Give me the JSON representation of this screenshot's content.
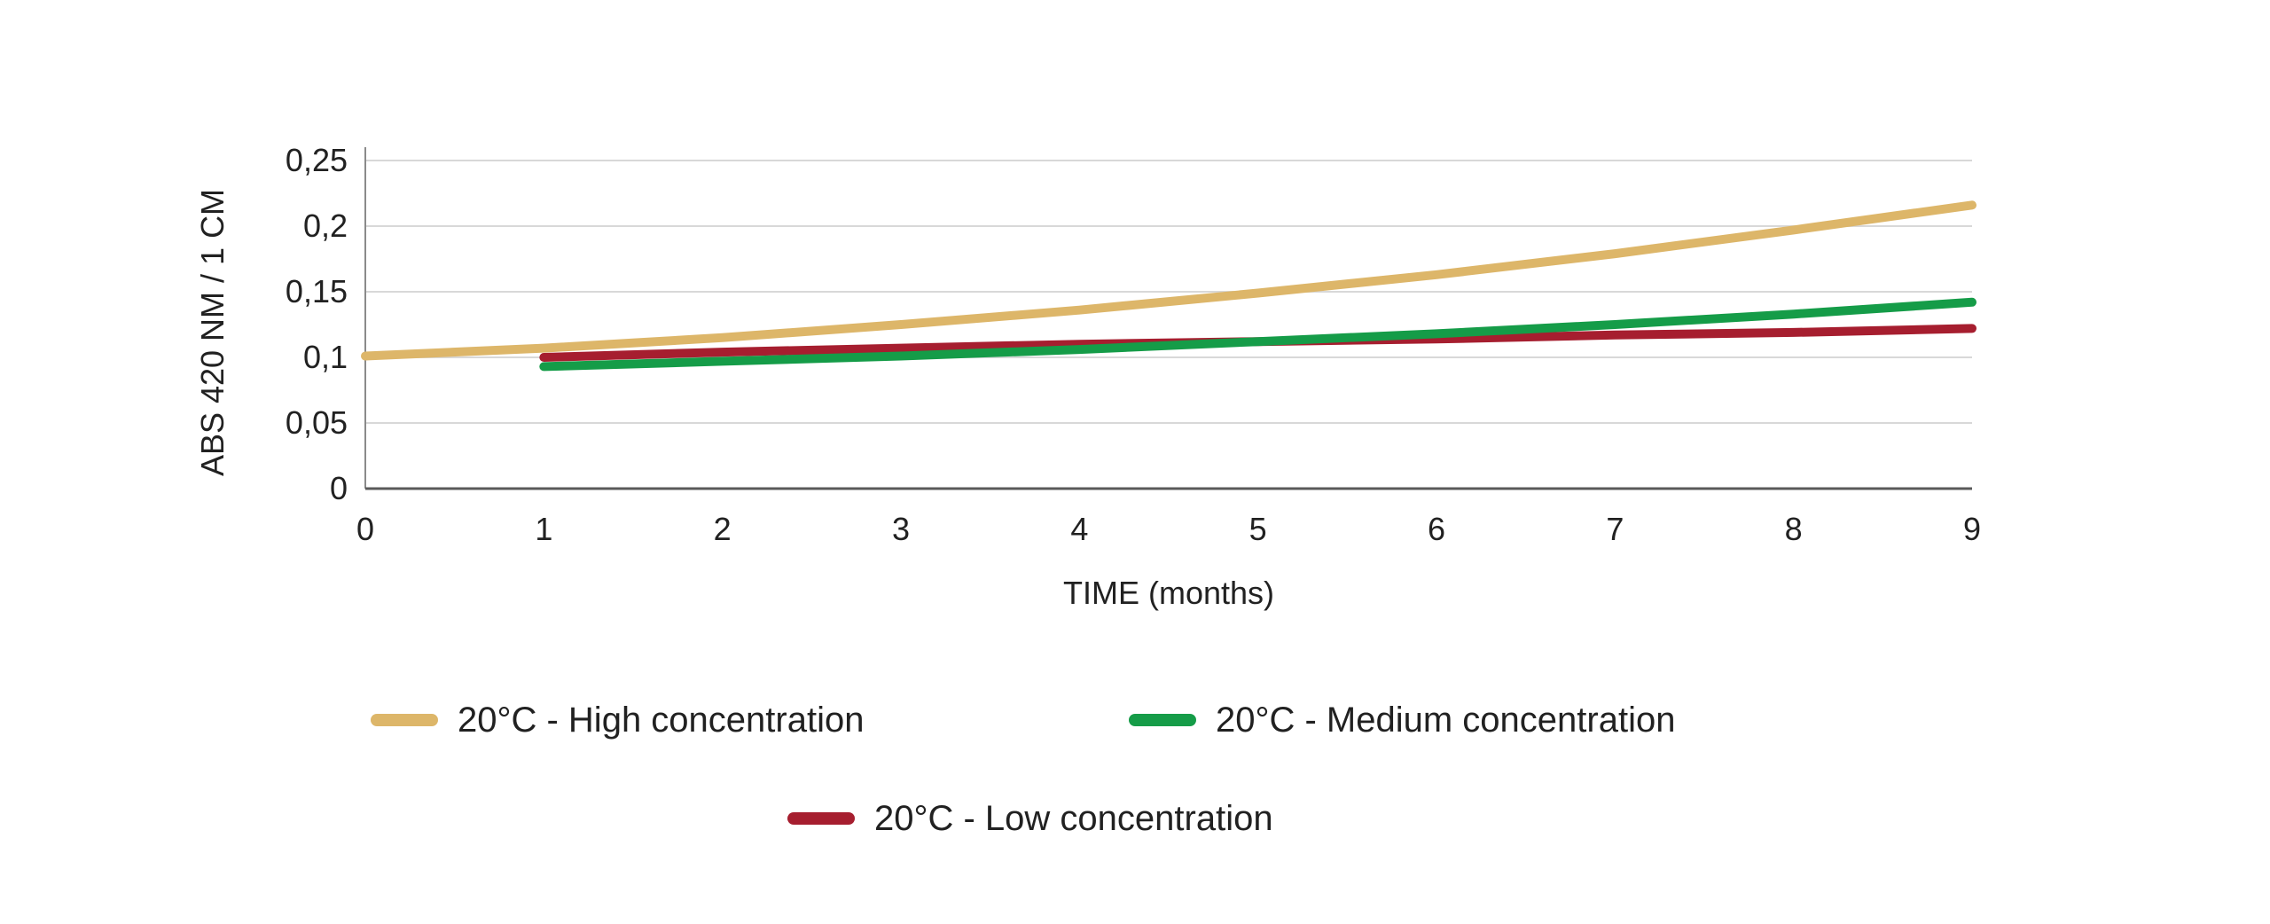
{
  "page": {
    "background": "#ffffff",
    "text_color": "#212121"
  },
  "chart_data": {
    "type": "line",
    "title": "",
    "xlabel": "TIME (months)",
    "ylabel": "ABS 420 NM / 1 CM",
    "xlim": [
      0,
      9
    ],
    "ylim": [
      0,
      0.25
    ],
    "grid": "horizontal-only",
    "gridline_color": "#D8D8D8",
    "y_axis_line_color": "#8A8A8A",
    "x_axis_line_color": "#5A5A5A",
    "legend_position": "bottom",
    "ytick_values": [
      0,
      0.05,
      0.1,
      0.15,
      0.2,
      0.25
    ],
    "ytick_labels": [
      "0",
      "0,05",
      "0,1",
      "0,15",
      "0,2",
      "0,25"
    ],
    "xtick_values": [
      0,
      1,
      2,
      3,
      4,
      5,
      6,
      7,
      8,
      9
    ],
    "xtick_labels": [
      "0",
      "1",
      "2",
      "3",
      "4",
      "5",
      "6",
      "7",
      "8",
      "9"
    ],
    "series": [
      {
        "name": "20°C - High concentration",
        "color": "#DDB669",
        "z": 1,
        "x": [
          0,
          1,
          2,
          3,
          4,
          5,
          6,
          7,
          8,
          9
        ],
        "values": [
          0.101,
          0.107,
          0.115,
          0.125,
          0.136,
          0.149,
          0.163,
          0.179,
          0.197,
          0.216
        ]
      },
      {
        "name": "20°C - Medium concentration",
        "color": "#159C48",
        "z": 3,
        "x": [
          1,
          2,
          3,
          4,
          5,
          6,
          7,
          8,
          9
        ],
        "values": [
          0.093,
          0.097,
          0.101,
          0.106,
          0.112,
          0.118,
          0.125,
          0.133,
          0.142
        ]
      },
      {
        "name": "20°C - Low concentration",
        "color": "#A61E2F",
        "z": 2,
        "x": [
          1,
          2,
          3,
          4,
          5,
          6,
          7,
          8,
          9
        ],
        "values": [
          0.1,
          0.104,
          0.107,
          0.11,
          0.112,
          0.114,
          0.117,
          0.119,
          0.122
        ]
      }
    ]
  },
  "legend": {
    "items": [
      {
        "label": "20°C - High concentration",
        "color": "#DDB669"
      },
      {
        "label": "20°C - Medium concentration",
        "color": "#159C48"
      },
      {
        "label": "20°C - Low concentration",
        "color": "#A61E2F"
      }
    ]
  }
}
